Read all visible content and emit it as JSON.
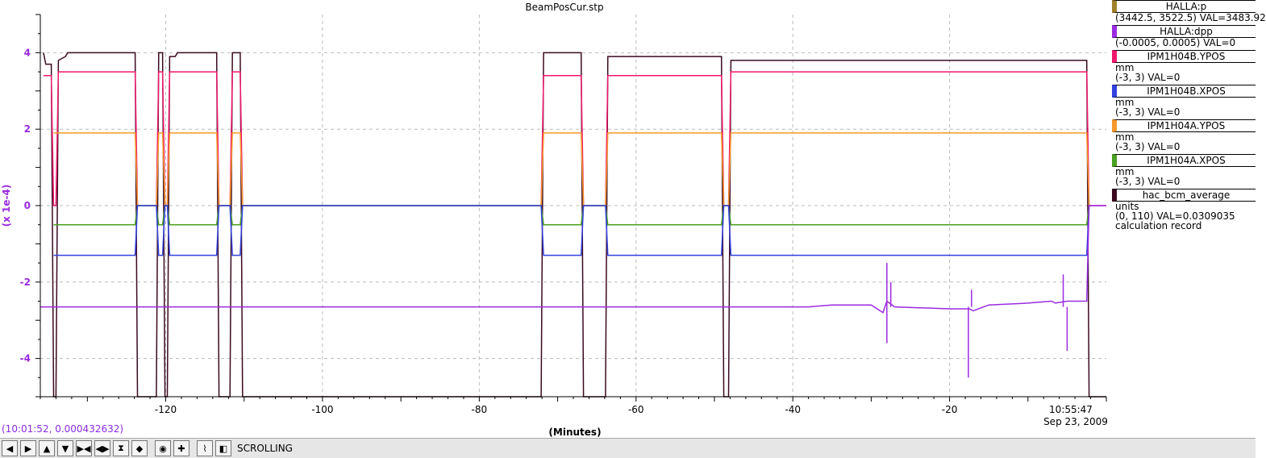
{
  "window": {
    "title": "BeamPosCur.stp"
  },
  "colors": {
    "p": "#a0802a",
    "dpp": "#9b2be0",
    "ypos_b": "#f0186c",
    "xpos_b": "#3340e0",
    "ypos_a": "#f59a2a",
    "xpos_a": "#4aa020",
    "bcm": "#3a0a20"
  },
  "legend": [
    {
      "name": "HALLA:p",
      "lines": [
        "(3442.5, 3522.5) VAL=3483.92"
      ],
      "color": "#a0802a"
    },
    {
      "name": "HALLA:dpp",
      "lines": [
        "(-0.0005, 0.0005) VAL=0"
      ],
      "color": "#9b2be0"
    },
    {
      "name": "IPM1H04B.YPOS",
      "lines": [
        "mm",
        "(-3, 3) VAL=0"
      ],
      "color": "#f0186c"
    },
    {
      "name": "IPM1H04B.XPOS",
      "lines": [
        "mm",
        "(-3, 3) VAL=0"
      ],
      "color": "#3340e0"
    },
    {
      "name": "IPM1H04A.YPOS",
      "lines": [
        "mm",
        "(-3, 3) VAL=0"
      ],
      "color": "#f59a2a"
    },
    {
      "name": "IPM1H04A.XPOS",
      "lines": [
        "mm",
        "(-3, 3) VAL=0"
      ],
      "color": "#4aa020"
    },
    {
      "name": "hac_bcm_average",
      "lines": [
        "units",
        "(0, 110) VAL=0.0309035",
        "calculation record"
      ],
      "color": "#3a0a20"
    }
  ],
  "status": {
    "cursor": "(10:01:52, 0.000432632)",
    "end_time": "10:55:47",
    "end_date": "Sep 23, 2009"
  },
  "toolbar": {
    "buttons": [
      "arrow-left-icon",
      "arrow-right-icon",
      "arrow-up-icon",
      "arrow-down-icon",
      "zoom-in-x-icon",
      "zoom-out-x-icon",
      "zoom-in-y-icon",
      "zoom-out-y-icon",
      "target-icon",
      "plus-icon",
      "auto-scale-icon",
      "back-to-scroll-icon"
    ],
    "mode": "SCROLLING"
  },
  "chart_data": {
    "type": "line",
    "title": "BeamPosCur.stp",
    "xlabel": "(Minutes)",
    "ylabel": "(x 1e-4)",
    "xlim": [
      -136,
      0
    ],
    "ylim": [
      -5,
      5
    ],
    "xticks": [
      -120,
      -100,
      -80,
      -60,
      -40,
      -20
    ],
    "yticks": [
      -4,
      -2,
      0,
      2,
      4
    ],
    "grid": true,
    "legend_position": "right",
    "series": [
      {
        "name": "hac_bcm_average",
        "color": "#3a0a20",
        "x": [
          -135.6,
          -135.3,
          -134.6,
          -134.3,
          -134.0,
          -133.7,
          -132.8,
          -132.5,
          -123.9,
          -123.6,
          -121.2,
          -120.9,
          -120.4,
          -120.1,
          -119.8,
          -119.5,
          -118.8,
          -118.5,
          -113.5,
          -113.2,
          -111.8,
          -111.5,
          -110.5,
          -110.2,
          -72.1,
          -71.8,
          -67.0,
          -66.7,
          -63.9,
          -63.6,
          -49.1,
          -48.8,
          -48.2,
          -47.9,
          -2.5,
          -2.2,
          0
        ],
        "y": [
          4.0,
          3.7,
          3.7,
          -5.0,
          -5.0,
          3.8,
          3.9,
          4.0,
          4.0,
          -5.0,
          -5.0,
          4.0,
          4.0,
          -5.0,
          -5.0,
          3.9,
          3.9,
          4.0,
          4.0,
          -5.0,
          -5.0,
          4.0,
          4.0,
          -5.0,
          -5.0,
          4.0,
          4.0,
          -5.0,
          -5.0,
          3.9,
          3.9,
          -5.0,
          -5.0,
          3.8,
          3.8,
          -5.0,
          -5.0
        ]
      },
      {
        "name": "IPM1H04B.YPOS",
        "color": "#f0186c",
        "x": [
          -135.6,
          -134.6,
          -134.3,
          -134.0,
          -133.7,
          -123.9,
          -123.6,
          -121.2,
          -120.9,
          -120.4,
          -120.1,
          -119.8,
          -119.5,
          -113.5,
          -113.2,
          -111.8,
          -111.5,
          -110.5,
          -110.2,
          -72.1,
          -71.8,
          -67.0,
          -66.7,
          -63.9,
          -63.6,
          -49.1,
          -48.8,
          -48.2,
          -47.9,
          -2.5,
          -2.2,
          0
        ],
        "y": [
          3.4,
          3.4,
          0,
          0,
          3.5,
          3.5,
          0,
          0,
          3.5,
          3.5,
          0,
          0,
          3.5,
          3.5,
          0,
          0,
          3.5,
          3.5,
          0,
          0,
          3.4,
          3.4,
          0,
          0,
          3.4,
          3.4,
          0,
          0,
          3.5,
          3.5,
          0,
          0
        ]
      },
      {
        "name": "IPM1H04A.YPOS",
        "color": "#f59a2a",
        "x": [
          -134.3,
          -123.9,
          -123.6,
          -121.2,
          -120.9,
          -120.4,
          -120.1,
          -119.8,
          -119.5,
          -113.5,
          -113.2,
          -111.8,
          -111.5,
          -110.5,
          -110.2,
          -72.1,
          -71.8,
          -67.0,
          -66.7,
          -63.9,
          -63.6,
          -49.1,
          -48.8,
          -48.2,
          -47.9,
          -2.5,
          -2.2
        ],
        "y": [
          1.9,
          1.9,
          0,
          0,
          1.9,
          1.9,
          0,
          0,
          1.9,
          1.9,
          0,
          0,
          1.9,
          1.9,
          0,
          0,
          1.9,
          1.9,
          0,
          0,
          1.9,
          1.9,
          0,
          0,
          1.9,
          1.9,
          0
        ]
      },
      {
        "name": "IPM1H04A.XPOS",
        "color": "#4aa020",
        "x": [
          -134.3,
          -123.9,
          -123.6,
          -121.2,
          -120.9,
          -120.4,
          -120.1,
          -119.8,
          -119.5,
          -113.5,
          -113.2,
          -111.8,
          -111.5,
          -110.5,
          -110.2,
          -72.1,
          -71.8,
          -67.0,
          -66.7,
          -63.9,
          -63.6,
          -49.1,
          -48.8,
          -48.2,
          -47.9,
          -2.5,
          -2.2
        ],
        "y": [
          -0.5,
          -0.5,
          0,
          0,
          -0.5,
          -0.5,
          0,
          0,
          -0.5,
          -0.5,
          0,
          0,
          -0.5,
          -0.5,
          0,
          0,
          -0.5,
          -0.5,
          0,
          0,
          -0.5,
          -0.5,
          0,
          0,
          -0.5,
          -0.5,
          0
        ]
      },
      {
        "name": "IPM1H04B.XPOS",
        "color": "#3340e0",
        "x": [
          -134.3,
          -123.9,
          -123.6,
          -121.2,
          -120.9,
          -120.4,
          -120.1,
          -119.8,
          -119.5,
          -113.5,
          -113.2,
          -111.8,
          -111.5,
          -110.5,
          -110.2,
          -72.1,
          -71.8,
          -67.0,
          -66.7,
          -63.9,
          -63.6,
          -49.1,
          -48.8,
          -48.2,
          -47.9,
          -2.5,
          -2.2
        ],
        "y": [
          -1.3,
          -1.3,
          0,
          0,
          -1.3,
          -1.3,
          0,
          0,
          -1.3,
          -1.3,
          0,
          0,
          -1.3,
          -1.3,
          0,
          0,
          -1.3,
          -1.3,
          0,
          0,
          -1.3,
          -1.3,
          0,
          0,
          -1.3,
          -1.3,
          0
        ]
      },
      {
        "name": "HALLA:dpp",
        "color": "#9b2be0",
        "x": [
          -136,
          -38,
          -35,
          -30,
          -28.5,
          -28,
          -27,
          -20,
          -17.5,
          -17,
          -15,
          -10,
          -7,
          -6.5,
          -5,
          -2.5,
          -2.2,
          0
        ],
        "y": [
          -2.65,
          -2.65,
          -2.6,
          -2.6,
          -2.8,
          -2.5,
          -2.65,
          -2.7,
          -2.7,
          -2.75,
          -2.6,
          -2.55,
          -2.5,
          -2.55,
          -2.5,
          -2.5,
          0,
          0
        ]
      }
    ],
    "spikes": [
      {
        "name": "HALLA:dpp",
        "color": "#9b2be0",
        "x": [
          -28,
          -28,
          -27.5,
          -17.6,
          -17.2,
          -5.5,
          -5
        ],
        "y": [
          -1.5,
          -3.6,
          -2.0,
          -4.5,
          -2.2,
          -1.8,
          -3.8
        ]
      }
    ]
  }
}
